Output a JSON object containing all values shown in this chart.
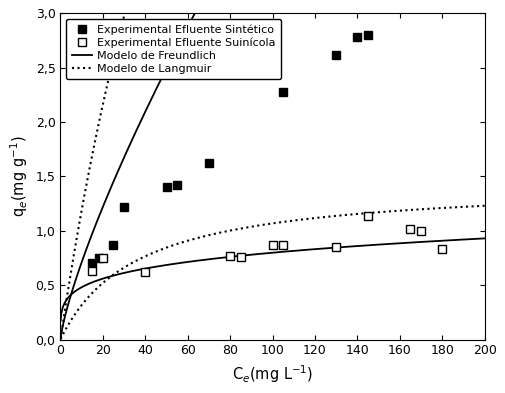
{
  "title": "",
  "xlabel": "C$_{e}$(mg L$^{-1}$)",
  "ylabel": "q$_{e}$(mg g$^{-1}$)",
  "xlim": [
    0,
    200
  ],
  "ylim": [
    0.0,
    3.0
  ],
  "yticks": [
    0.0,
    0.5,
    1.0,
    1.5,
    2.0,
    2.5,
    3.0
  ],
  "ytick_labels": [
    "0,0",
    "0,5",
    "1,0",
    "1,5",
    "2,0",
    "2,5",
    "3,0"
  ],
  "xticks": [
    0,
    20,
    40,
    60,
    80,
    100,
    120,
    140,
    160,
    180,
    200
  ],
  "exp_sintetico_x": [
    15,
    18,
    25,
    30,
    50,
    55,
    70,
    105,
    130,
    140,
    145
  ],
  "exp_sintetico_y": [
    0.7,
    0.75,
    0.87,
    1.22,
    1.4,
    1.42,
    1.62,
    2.28,
    2.62,
    2.78,
    2.8
  ],
  "exp_suinicola_x": [
    15,
    20,
    40,
    80,
    85,
    100,
    105,
    130,
    145,
    165,
    170,
    180
  ],
  "exp_suinicola_y": [
    0.63,
    0.75,
    0.62,
    0.77,
    0.76,
    0.87,
    0.87,
    0.85,
    1.14,
    1.02,
    1.0,
    0.83
  ],
  "freundlich_sintetico_KF": 0.118,
  "freundlich_sintetico_n": 0.78,
  "freundlich_suinicola_KF": 0.29,
  "freundlich_suinicola_n": 0.22,
  "langmuir_sintetico_qmax": 12.0,
  "langmuir_sintetico_KL": 0.011,
  "langmuir_suinicola_qmax": 1.45,
  "langmuir_suinicola_KL": 0.028,
  "legend_labels": [
    "Experimental Efluente Sintético",
    "Experimental Efluente Suinícola",
    "Modelo de Freundlich",
    "Modelo de Langmuir"
  ],
  "background_color": "#ffffff",
  "data_color": "#000000",
  "line_color": "#000000"
}
